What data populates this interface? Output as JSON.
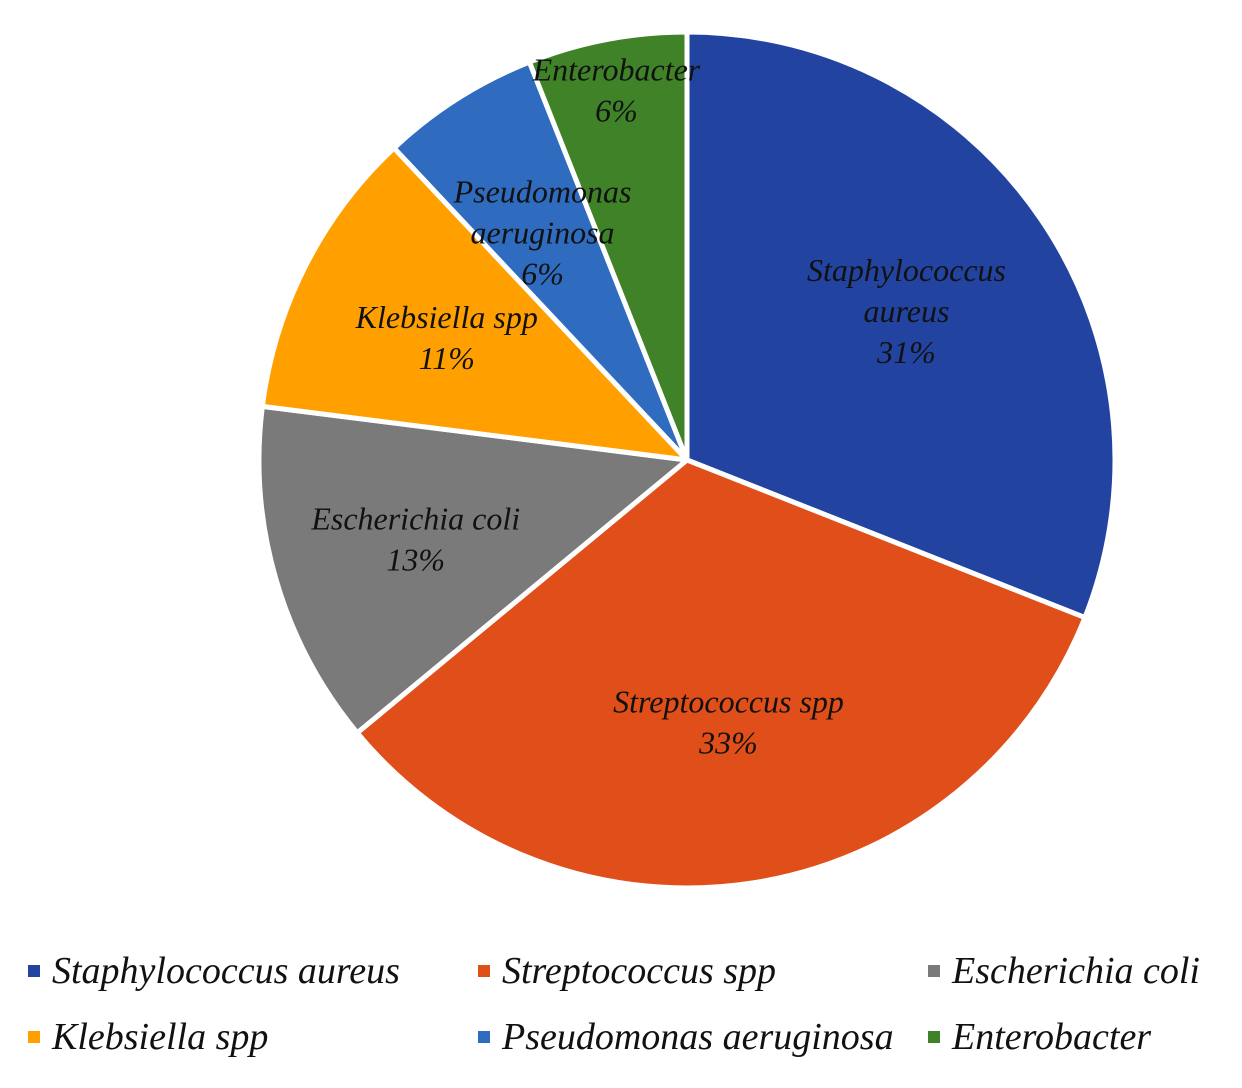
{
  "chart_data": {
    "type": "pie",
    "start_angle_deg": 0,
    "direction": "clockwise",
    "legend_position": "bottom",
    "slices": [
      {
        "label": "Staphylococcus aureus",
        "label_lines": [
          "Staphylococcus",
          "aureus",
          "31%"
        ],
        "value": 31,
        "percent_label": "31%",
        "color": "#2244A0"
      },
      {
        "label": "Streptococcus spp",
        "label_lines": [
          "Streptococcus spp",
          "33%"
        ],
        "value": 33,
        "percent_label": "33%",
        "color": "#E04E1A"
      },
      {
        "label": "Escherichia coli",
        "label_lines": [
          "Escherichia coli",
          "13%"
        ],
        "value": 13,
        "percent_label": "13%",
        "color": "#7A7A7A"
      },
      {
        "label": "Klebsiella spp",
        "label_lines": [
          "Klebsiella spp",
          "11%"
        ],
        "value": 11,
        "percent_label": "11%",
        "color": "#FFA000"
      },
      {
        "label": "Pseudomonas aeruginosa",
        "label_lines": [
          "Pseudomonas",
          "aeruginosa",
          "6%"
        ],
        "value": 6,
        "percent_label": "6%",
        "color": "#2F6CC0"
      },
      {
        "label": "Enterobacter",
        "label_lines": [
          "Enterobacter",
          "6%"
        ],
        "value": 6,
        "percent_label": "6%",
        "color": "#3F8228"
      }
    ]
  },
  "legend": {
    "items": [
      {
        "label": "Staphylococcus aureus",
        "color": "#2244A0"
      },
      {
        "label": "Streptococcus spp",
        "color": "#E04E1A"
      },
      {
        "label": "Escherichia coli",
        "color": "#7A7A7A"
      },
      {
        "label": "Klebsiella spp",
        "color": "#FFA000"
      },
      {
        "label": "Pseudomonas aeruginosa",
        "color": "#2F6CC0"
      },
      {
        "label": "Enterobacter",
        "color": "#3F8228"
      }
    ]
  }
}
